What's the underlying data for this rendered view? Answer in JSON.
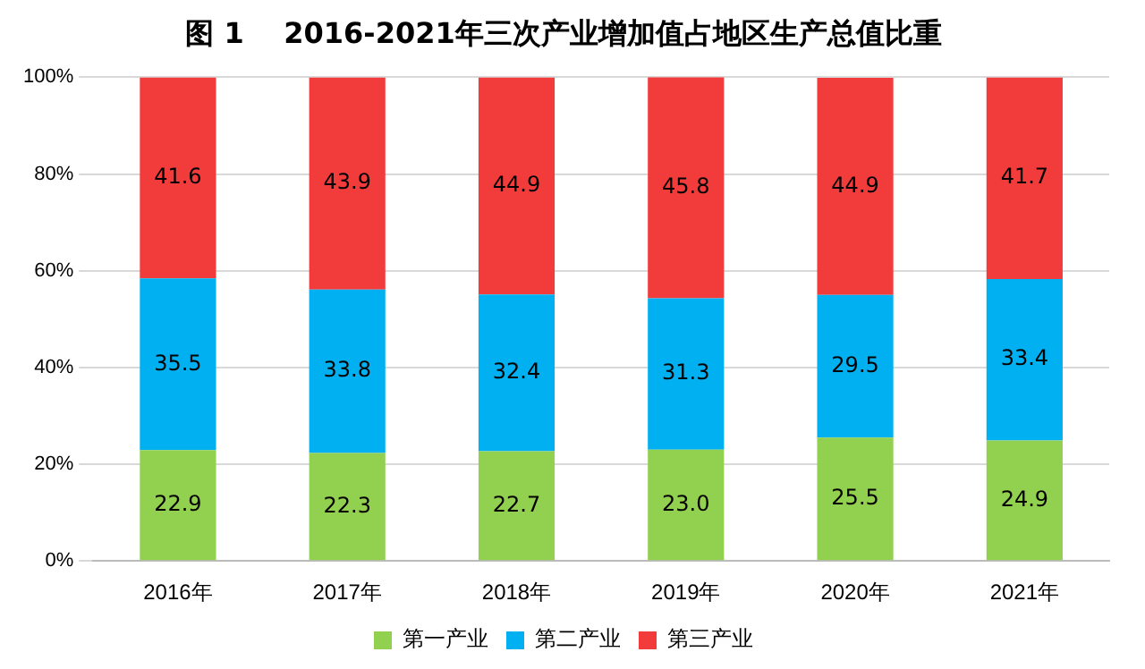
{
  "chart_data": {
    "type": "bar",
    "title": "图 1    2016-2021年三次产业增加值占地区生产总值比重",
    "categories": [
      "2016年",
      "2017年",
      "2018年",
      "2019年",
      "2020年",
      "2021年"
    ],
    "series": [
      {
        "name": "第一产业",
        "color": "#92d050",
        "values": [
          22.9,
          22.3,
          22.7,
          23.0,
          25.5,
          24.9
        ]
      },
      {
        "name": "第二产业",
        "color": "#00b0f0",
        "values": [
          35.5,
          33.8,
          32.4,
          31.3,
          29.5,
          33.4
        ]
      },
      {
        "name": "第三产业",
        "color": "#f23c3c",
        "values": [
          41.6,
          43.9,
          44.9,
          45.8,
          44.9,
          41.7
        ]
      }
    ],
    "value_labels": [
      [
        "22.9",
        "22.3",
        "22.7",
        "23.0",
        "25.5",
        "24.9"
      ],
      [
        "35.5",
        "33.8",
        "32.4",
        "31.3",
        "29.5",
        "33.4"
      ],
      [
        "41.6",
        "43.9",
        "44.9",
        "45.8",
        "44.9",
        "41.7"
      ]
    ],
    "stacked": true,
    "ylim": [
      0,
      100
    ],
    "yticks": [
      {
        "value": 0,
        "label": "0%"
      },
      {
        "value": 20,
        "label": "20%"
      },
      {
        "value": 40,
        "label": "40%"
      },
      {
        "value": 60,
        "label": "60%"
      },
      {
        "value": 80,
        "label": "80%"
      },
      {
        "value": 100,
        "label": "100%"
      }
    ],
    "grid": "y",
    "legend": "bottom"
  }
}
